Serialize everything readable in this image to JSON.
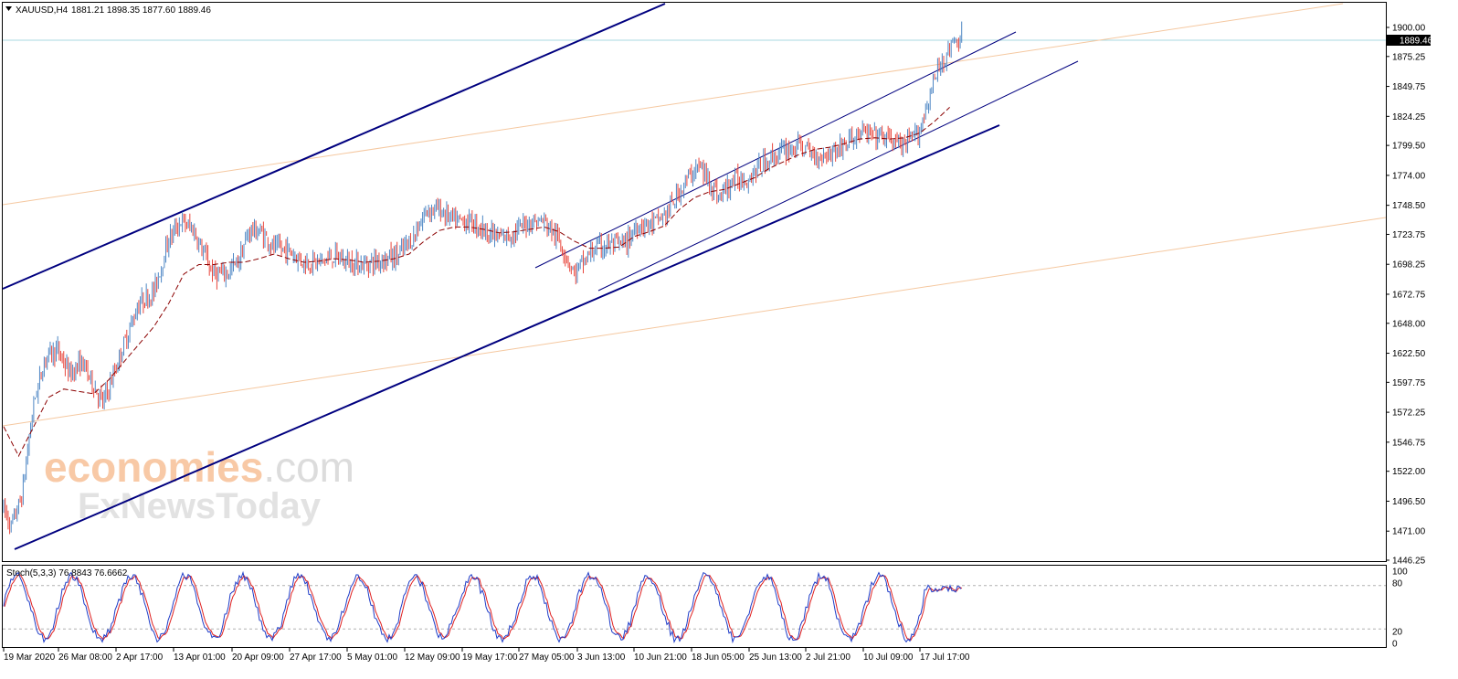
{
  "header": {
    "symbol": "XAUUSD,H4",
    "ohlc": "1881.21 1898.35 1877.60 1889.46",
    "menu_icon": "triangle-down-icon"
  },
  "price_label": "1889.46",
  "watermark": {
    "line1_a": "economies",
    "line1_b": ".com",
    "line2": "FxNewsToday"
  },
  "stoch_header": "Stoch(5,3,3) 76.8843 76.6662",
  "chart_data": {
    "type": "candlestick",
    "instrument": "XAUUSD",
    "timeframe": "H4",
    "ylim": [
      1446.25,
      1900.0
    ],
    "price_ticks": [
      "1900.00",
      "1875.25",
      "1849.75",
      "1824.25",
      "1799.50",
      "1774.00",
      "1748.50",
      "1723.75",
      "1698.25",
      "1672.75",
      "1648.00",
      "1622.50",
      "1597.75",
      "1572.25",
      "1546.75",
      "1522.00",
      "1496.50",
      "1471.00",
      "1446.25"
    ],
    "time_ticks": [
      "19 Mar 2020",
      "26 Mar 08:00",
      "2 Apr 17:00",
      "13 Apr 01:00",
      "20 Apr 09:00",
      "27 Apr 17:00",
      "5 May 01:00",
      "12 May 09:00",
      "19 May 17:00",
      "27 May 05:00",
      "3 Jun 13:00",
      "10 Jun 21:00",
      "18 Jun 05:00",
      "25 Jun 13:00",
      "2 Jul 21:00",
      "10 Jul 09:00",
      "17 Jul 17:00"
    ],
    "last_price": 1889.46,
    "price_path": [
      [
        0,
        1490
      ],
      [
        5,
        1475
      ],
      [
        12,
        1500
      ],
      [
        20,
        1580
      ],
      [
        28,
        1620
      ],
      [
        36,
        1625
      ],
      [
        44,
        1605
      ],
      [
        52,
        1615
      ],
      [
        60,
        1595
      ],
      [
        66,
        1580
      ],
      [
        72,
        1600
      ],
      [
        80,
        1630
      ],
      [
        90,
        1665
      ],
      [
        100,
        1675
      ],
      [
        110,
        1720
      ],
      [
        118,
        1735
      ],
      [
        126,
        1728
      ],
      [
        134,
        1705
      ],
      [
        140,
        1690
      ],
      [
        148,
        1690
      ],
      [
        156,
        1700
      ],
      [
        164,
        1728
      ],
      [
        172,
        1725
      ],
      [
        180,
        1712
      ],
      [
        190,
        1710
      ],
      [
        200,
        1700
      ],
      [
        210,
        1700
      ],
      [
        220,
        1705
      ],
      [
        230,
        1700
      ],
      [
        240,
        1698
      ],
      [
        250,
        1702
      ],
      [
        262,
        1705
      ],
      [
        272,
        1720
      ],
      [
        282,
        1745
      ],
      [
        290,
        1745
      ],
      [
        300,
        1735
      ],
      [
        310,
        1735
      ],
      [
        320,
        1728
      ],
      [
        330,
        1720
      ],
      [
        340,
        1725
      ],
      [
        350,
        1735
      ],
      [
        360,
        1735
      ],
      [
        370,
        1718
      ],
      [
        376,
        1702
      ],
      [
        380,
        1690
      ],
      [
        386,
        1700
      ],
      [
        394,
        1712
      ],
      [
        404,
        1715
      ],
      [
        414,
        1715
      ],
      [
        422,
        1732
      ],
      [
        432,
        1732
      ],
      [
        442,
        1742
      ],
      [
        452,
        1765
      ],
      [
        462,
        1782
      ],
      [
        470,
        1770
      ],
      [
        476,
        1755
      ],
      [
        486,
        1770
      ],
      [
        496,
        1772
      ],
      [
        504,
        1782
      ],
      [
        512,
        1790
      ],
      [
        520,
        1795
      ],
      [
        530,
        1800
      ],
      [
        540,
        1790
      ],
      [
        550,
        1793
      ],
      [
        560,
        1800
      ],
      [
        570,
        1810
      ],
      [
        580,
        1808
      ],
      [
        590,
        1805
      ],
      [
        600,
        1798
      ],
      [
        610,
        1812
      ],
      [
        616,
        1840
      ],
      [
        624,
        1870
      ],
      [
        632,
        1885
      ],
      [
        638,
        1892
      ]
    ],
    "moving_average_path": [
      [
        0,
        1560
      ],
      [
        10,
        1535
      ],
      [
        20,
        1560
      ],
      [
        30,
        1585
      ],
      [
        40,
        1592
      ],
      [
        50,
        1590
      ],
      [
        60,
        1588
      ],
      [
        70,
        1600
      ],
      [
        80,
        1615
      ],
      [
        90,
        1630
      ],
      [
        100,
        1645
      ],
      [
        110,
        1665
      ],
      [
        120,
        1690
      ],
      [
        130,
        1698
      ],
      [
        140,
        1698
      ],
      [
        150,
        1700
      ],
      [
        160,
        1700
      ],
      [
        170,
        1703
      ],
      [
        180,
        1707
      ],
      [
        190,
        1703
      ],
      [
        200,
        1700
      ],
      [
        210,
        1701
      ],
      [
        220,
        1703
      ],
      [
        230,
        1702
      ],
      [
        240,
        1700
      ],
      [
        250,
        1701
      ],
      [
        260,
        1703
      ],
      [
        270,
        1707
      ],
      [
        280,
        1718
      ],
      [
        290,
        1727
      ],
      [
        300,
        1730
      ],
      [
        310,
        1730
      ],
      [
        320,
        1728
      ],
      [
        330,
        1725
      ],
      [
        340,
        1726
      ],
      [
        350,
        1728
      ],
      [
        360,
        1730
      ],
      [
        370,
        1726
      ],
      [
        380,
        1718
      ],
      [
        390,
        1712
      ],
      [
        400,
        1712
      ],
      [
        410,
        1713
      ],
      [
        420,
        1722
      ],
      [
        430,
        1726
      ],
      [
        440,
        1731
      ],
      [
        450,
        1745
      ],
      [
        460,
        1755
      ],
      [
        470,
        1760
      ],
      [
        480,
        1762
      ],
      [
        490,
        1767
      ],
      [
        500,
        1772
      ],
      [
        510,
        1780
      ],
      [
        520,
        1786
      ],
      [
        530,
        1792
      ],
      [
        540,
        1796
      ],
      [
        550,
        1798
      ],
      [
        560,
        1801
      ],
      [
        570,
        1805
      ],
      [
        580,
        1806
      ],
      [
        590,
        1805
      ],
      [
        600,
        1806
      ],
      [
        610,
        1810
      ],
      [
        620,
        1820
      ],
      [
        630,
        1832
      ]
    ],
    "stochastic": {
      "params": "5,3,3",
      "main": 76.8843,
      "signal": 76.6662,
      "levels": [
        20,
        80
      ],
      "ylim": [
        0,
        100
      ]
    }
  },
  "colors": {
    "channel": "#00007f",
    "fib_line": "#f5c8a0",
    "price_line": "#a8d8e0",
    "bull_candle": "#4d86c4",
    "bear_candle": "#e8463c",
    "ma_line": "#8b0000",
    "stoch_main": "#1e3cc8",
    "stoch_signal": "#e02020",
    "watermark_orange": "#f8c9a6",
    "watermark_grey": "#dcdcdc"
  }
}
